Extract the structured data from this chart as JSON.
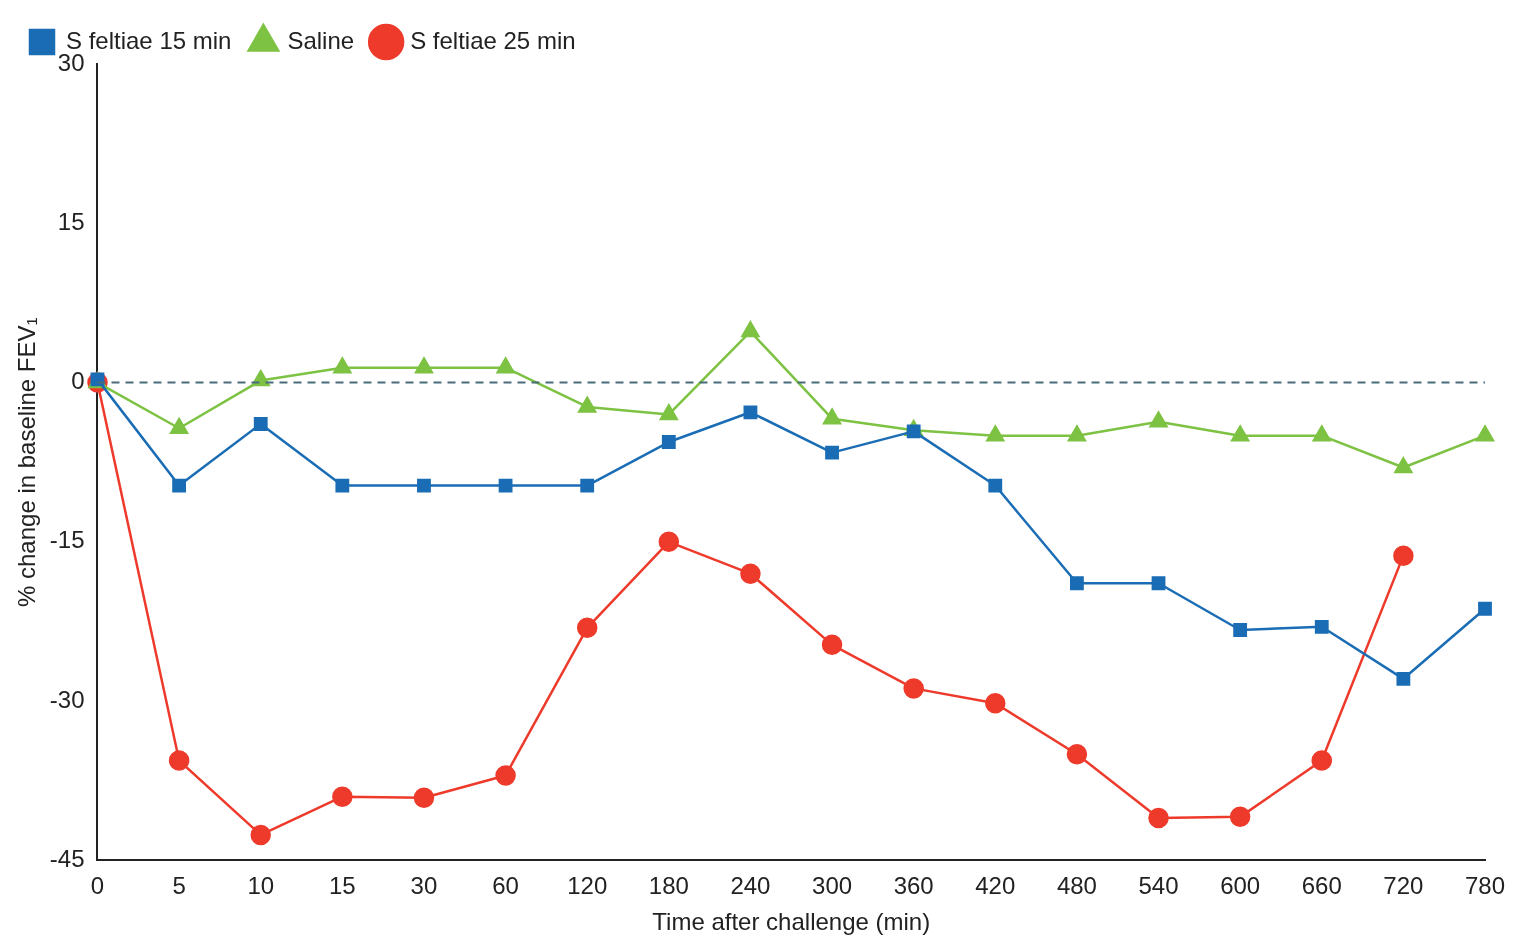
{
  "chart_data": {
    "type": "line",
    "xlabel": "Time after challenge (min)",
    "ylabel": "% change in baseline FEV₁",
    "categories": [
      "0",
      "5",
      "10",
      "15",
      "30",
      "60",
      "120",
      "180",
      "240",
      "300",
      "360",
      "420",
      "480",
      "540",
      "600",
      "660",
      "720",
      "780"
    ],
    "ylim": [
      -45,
      30
    ],
    "yticks": [
      -45,
      -30,
      -15,
      0,
      15,
      30
    ],
    "grid": false,
    "legend": "top left",
    "line_style": "solid",
    "ref_lines": [
      {
        "axis": "y",
        "value": 0,
        "line_style": "dashed",
        "color": "#4a6b7a"
      }
    ],
    "series": [
      {
        "name": "Saline",
        "color": "#7dc242",
        "marker": "triangle",
        "values": [
          0,
          -4.3,
          0.2,
          1.4,
          1.4,
          1.4,
          -2.3,
          -3,
          4.8,
          -3.4,
          -4.5,
          -5,
          -5,
          -3.7,
          -5,
          -5,
          -8,
          -5
        ]
      },
      {
        "name": "S feltiae 15 min",
        "color": "#1a6db5",
        "marker": "square",
        "values": [
          0.3,
          -9.7,
          -3.9,
          -9.7,
          -9.7,
          -9.7,
          -9.7,
          -5.6,
          -2.8,
          -6.6,
          -4.6,
          -9.7,
          -18.9,
          -18.9,
          -23.3,
          -23,
          -27.9,
          -21.3
        ]
      },
      {
        "name": "S feltiae 25 min",
        "color": "#ee3a2b",
        "marker": "circle",
        "values": [
          0,
          -35.6,
          -42.6,
          -39,
          -39.1,
          -37,
          -23.1,
          -15,
          -18,
          -24.7,
          -28.8,
          -30.2,
          -35,
          -41,
          -40.9,
          -35.6,
          -16.3,
          null
        ]
      }
    ]
  }
}
